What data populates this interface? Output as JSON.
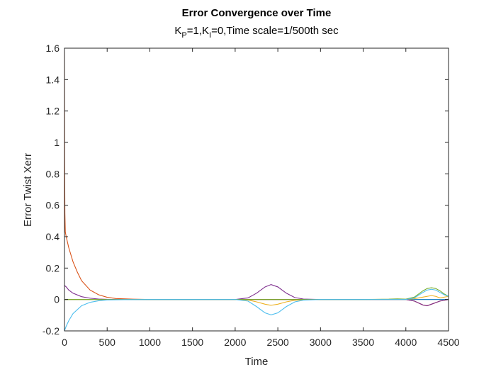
{
  "chart_data": {
    "type": "line",
    "title": "Error Convergence over Time",
    "subtitle": {
      "kp_base": "K",
      "kp_sub": "P",
      "ki_part": "=1,K",
      "ki_sub": "I",
      "rest": "=0,Time scale=1/500th sec"
    },
    "xlabel": "Time",
    "ylabel": "Error Twist Xerr",
    "xlim": [
      0,
      4500
    ],
    "ylim": [
      -0.2,
      1.6
    ],
    "xticks": [
      0,
      500,
      1000,
      1500,
      2000,
      2500,
      3000,
      3500,
      4000,
      4500
    ],
    "xtick_labels": [
      "0",
      "500",
      "1000",
      "1500",
      "2000",
      "2500",
      "3000",
      "3500",
      "4000",
      "4500"
    ],
    "yticks": [
      -0.2,
      0,
      0.2,
      0.4,
      0.6,
      0.8,
      1,
      1.2,
      1.4,
      1.6
    ],
    "ytick_labels": [
      "-0.2",
      "0",
      "0.2",
      "0.4",
      "0.6",
      "0.8",
      "1",
      "1.2",
      "1.4",
      "1.6"
    ],
    "series": [
      {
        "color": "#0072BD",
        "x": [
          0,
          100,
          500,
          1000,
          2000,
          2400,
          3000,
          4000,
          4500
        ],
        "y": [
          0,
          0,
          0,
          0,
          0,
          0,
          0,
          0,
          0
        ]
      },
      {
        "color": "#D95319",
        "x": [
          0,
          2,
          5,
          10,
          20,
          50,
          100,
          150,
          200,
          300,
          400,
          500,
          600,
          800,
          1000,
          2000,
          3000,
          3800,
          4000,
          4100,
          4200,
          4250,
          4300,
          4400,
          4500
        ],
        "y": [
          1.58,
          0.9,
          0.55,
          0.43,
          0.4,
          0.33,
          0.24,
          0.175,
          0.12,
          0.06,
          0.03,
          0.014,
          0.006,
          0.002,
          0.0,
          0.0,
          0.0,
          0.0,
          0.0,
          -0.01,
          -0.035,
          -0.04,
          -0.03,
          -0.01,
          0.0
        ]
      },
      {
        "color": "#EDB120",
        "x": [
          0,
          500,
          1000,
          2000,
          2150,
          2250,
          2350,
          2420,
          2500,
          2600,
          2700,
          2800,
          3000,
          3800,
          4000,
          4100,
          4200,
          4300,
          4350,
          4400,
          4500
        ],
        "y": [
          0,
          0,
          0,
          0,
          -0.003,
          -0.015,
          -0.03,
          -0.037,
          -0.03,
          -0.015,
          -0.005,
          -0.001,
          0,
          0,
          0,
          0.005,
          0.015,
          0.025,
          0.02,
          0.01,
          0.02
        ]
      },
      {
        "color": "#7E2F8E",
        "x": [
          0,
          20,
          50,
          100,
          200,
          300,
          400,
          500,
          700,
          1000,
          2000,
          2150,
          2250,
          2350,
          2420,
          2500,
          2600,
          2700,
          2800,
          3000,
          3800,
          4000,
          4100,
          4200,
          4250,
          4300,
          4400,
          4500
        ],
        "y": [
          0.09,
          0.08,
          0.06,
          0.04,
          0.018,
          0.008,
          0.003,
          0.001,
          0.0,
          0.0,
          0.0,
          0.01,
          0.04,
          0.08,
          0.095,
          0.08,
          0.04,
          0.012,
          0.003,
          0.0,
          0.0,
          0.0,
          -0.01,
          -0.035,
          -0.04,
          -0.03,
          -0.01,
          0.0
        ]
      },
      {
        "color": "#77AC30",
        "x": [
          0,
          500,
          1000,
          2000,
          2200,
          2400,
          2600,
          2800,
          3000,
          3500,
          3800,
          3900,
          4000,
          4100,
          4200,
          4250,
          4300,
          4350,
          4400,
          4450,
          4500
        ],
        "y": [
          0,
          0,
          0,
          0,
          0,
          0,
          0,
          0,
          0,
          0,
          0.002,
          0.004,
          0.002,
          0.015,
          0.055,
          0.07,
          0.075,
          0.07,
          0.055,
          0.035,
          0.02
        ]
      },
      {
        "color": "#4DBEEE",
        "x": [
          0,
          20,
          50,
          100,
          200,
          300,
          400,
          500,
          700,
          1000,
          2000,
          2150,
          2250,
          2350,
          2420,
          2500,
          2600,
          2700,
          2800,
          3000,
          3800,
          4000,
          4100,
          4200,
          4250,
          4300,
          4350,
          4400,
          4450,
          4500
        ],
        "y": [
          -0.2,
          -0.17,
          -0.135,
          -0.09,
          -0.04,
          -0.018,
          -0.008,
          -0.003,
          -0.001,
          0.0,
          0.0,
          -0.01,
          -0.045,
          -0.085,
          -0.098,
          -0.085,
          -0.045,
          -0.015,
          -0.004,
          0.0,
          0.0,
          0.0,
          0.01,
          0.045,
          0.06,
          0.065,
          0.06,
          0.045,
          0.03,
          0.02
        ]
      }
    ]
  }
}
